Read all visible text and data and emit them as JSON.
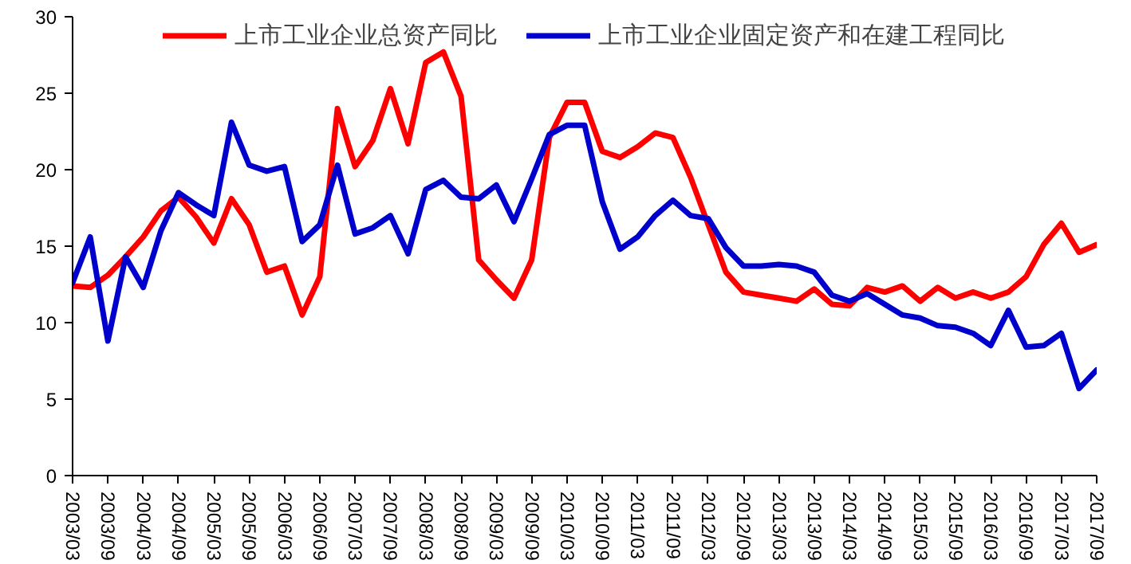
{
  "chart_data": {
    "type": "line",
    "categories": [
      "2003/03",
      null,
      "2003/09",
      null,
      "2004/03",
      null,
      "2004/09",
      null,
      "2005/03",
      null,
      "2005/09",
      null,
      "2006/03",
      null,
      "2006/09",
      null,
      "2007/03",
      null,
      "2007/09",
      null,
      "2008/03",
      null,
      "2008/09",
      null,
      "2009/03",
      null,
      "2009/09",
      null,
      "2010/03",
      null,
      "2010/09",
      null,
      "2011/03",
      null,
      "2011/09",
      null,
      "2012/03",
      null,
      "2012/09",
      null,
      "2013/03",
      null,
      "2013/09",
      null,
      "2014/03",
      null,
      "2014/09",
      null,
      "2015/03",
      null,
      "2015/09",
      null,
      "2016/03",
      null,
      "2016/09",
      null,
      "2017/03",
      null,
      "2017/09"
    ],
    "series": [
      {
        "name": "上市工业企业总资产同比",
        "color": "#ff0000",
        "values": [
          12.4,
          12.3,
          13.1,
          14.3,
          15.6,
          17.3,
          18.2,
          16.9,
          15.2,
          18.1,
          16.4,
          13.3,
          13.7,
          10.5,
          13.0,
          24.0,
          20.2,
          21.9,
          25.3,
          21.7,
          27.0,
          27.7,
          24.8,
          14.1,
          12.8,
          11.6,
          14.1,
          22.1,
          24.4,
          24.4,
          21.2,
          20.8,
          21.5,
          22.4,
          22.1,
          19.5,
          16.4,
          13.3,
          12.0,
          11.8,
          11.6,
          11.4,
          12.2,
          11.2,
          11.1,
          12.3,
          12.0,
          12.4,
          11.4,
          12.3,
          11.6,
          12.0,
          11.6,
          12.0,
          13.0,
          15.1,
          16.5,
          14.6,
          15.1
        ]
      },
      {
        "name": "上市工业企业固定资产和在建工程同比",
        "color": "#0000cc",
        "values": [
          12.6,
          15.6,
          8.8,
          14.3,
          12.3,
          16.0,
          18.5,
          17.7,
          17.0,
          23.1,
          20.3,
          19.9,
          20.2,
          15.3,
          16.4,
          20.3,
          15.8,
          16.2,
          17.0,
          14.5,
          18.7,
          19.3,
          18.2,
          18.1,
          19.0,
          16.6,
          19.4,
          22.3,
          22.9,
          22.9,
          17.9,
          14.8,
          15.6,
          17.0,
          18.0,
          17.0,
          16.8,
          14.9,
          13.7,
          13.7,
          13.8,
          13.7,
          13.3,
          11.8,
          11.4,
          11.9,
          11.2,
          10.5,
          10.3,
          9.8,
          9.7,
          9.3,
          8.5,
          10.8,
          8.4,
          8.5,
          9.3,
          5.7,
          6.9
        ]
      }
    ],
    "ylim": [
      0,
      30
    ],
    "yticks": [
      0,
      5,
      10,
      15,
      20,
      25,
      30
    ],
    "grid": false,
    "legend": "top",
    "line_style": "solid",
    "marker": "none"
  }
}
